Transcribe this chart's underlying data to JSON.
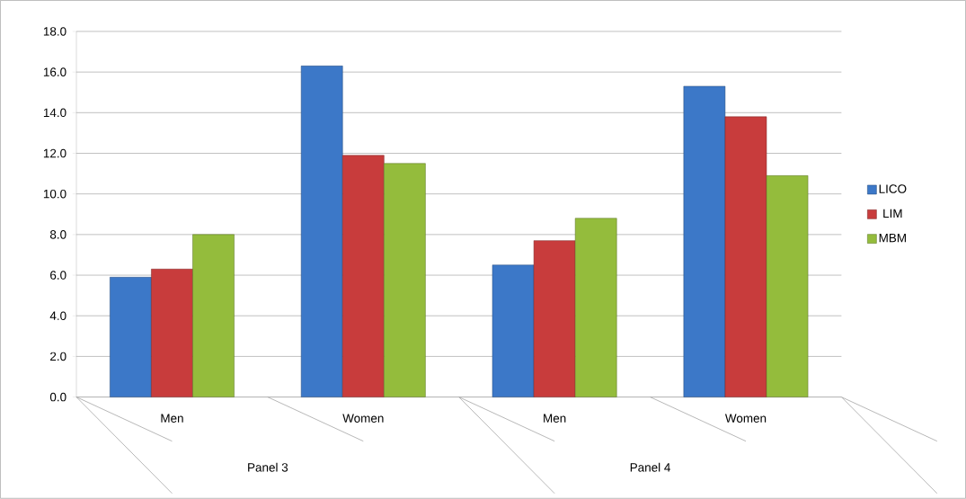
{
  "chart_data": {
    "type": "bar",
    "categories": [
      "Men",
      "Women",
      "Men",
      "Women"
    ],
    "annotations": [
      "Panel 3",
      "Panel 4"
    ],
    "series": [
      {
        "name": "LICO",
        "color": "#3c78c8",
        "values": [
          5.9,
          16.3,
          6.5,
          15.3
        ]
      },
      {
        "name": "LIM",
        "color": "#c83c3c",
        "values": [
          6.3,
          11.9,
          7.7,
          13.8
        ]
      },
      {
        "name": "MBM",
        "color": "#94bc3c",
        "values": [
          8.0,
          11.5,
          8.8,
          10.9
        ]
      }
    ],
    "ylim": [
      0,
      18
    ],
    "yticks": [
      {
        "value": 0,
        "label": "0.0"
      },
      {
        "value": 2,
        "label": "2.0"
      },
      {
        "value": 4,
        "label": "4.0"
      },
      {
        "value": 6,
        "label": "6.0"
      },
      {
        "value": 8,
        "label": "8.0"
      },
      {
        "value": 10,
        "label": "10.0"
      },
      {
        "value": 12,
        "label": "12.0"
      },
      {
        "value": 14,
        "label": "14.0"
      },
      {
        "value": 16,
        "label": "16.0"
      },
      {
        "value": 18,
        "label": "18.0"
      }
    ],
    "grid": "y",
    "legend": "right"
  }
}
